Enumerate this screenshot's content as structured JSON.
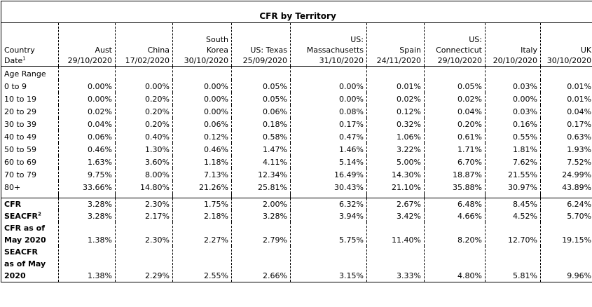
{
  "title": "CFR by Territory",
  "header": {
    "row_label_line1": "Country",
    "row_label_line2": "Date",
    "row_label_sup": "1",
    "columns": [
      {
        "name_lines": [
          "Aust"
        ],
        "date": "29/10/2020"
      },
      {
        "name_lines": [
          "China"
        ],
        "date": "17/02/2020"
      },
      {
        "name_lines": [
          "South",
          "Korea"
        ],
        "date": "30/10/2020"
      },
      {
        "name_lines": [
          "US: Texas"
        ],
        "date": "25/09/2020"
      },
      {
        "name_lines": [
          "US:",
          "Massachusetts"
        ],
        "date": "31/10/2020"
      },
      {
        "name_lines": [
          "Spain"
        ],
        "date": "24/11/2020"
      },
      {
        "name_lines": [
          "US:",
          "Connecticut"
        ],
        "date": "29/10/2020"
      },
      {
        "name_lines": [
          "Italy"
        ],
        "date": "20/10/2020"
      },
      {
        "name_lines": [
          "UK"
        ],
        "date": "30/10/2020"
      }
    ]
  },
  "age_range_label": "Age Range",
  "age_rows": [
    {
      "label": "0 to 9",
      "values": [
        "0.00%",
        "0.00%",
        "0.00%",
        "0.05%",
        "0.00%",
        "0.01%",
        "0.05%",
        "0.03%",
        "0.01%"
      ]
    },
    {
      "label": "10 to 19",
      "values": [
        "0.00%",
        "0.20%",
        "0.00%",
        "0.05%",
        "0.00%",
        "0.02%",
        "0.02%",
        "0.00%",
        "0.01%"
      ]
    },
    {
      "label": "20 to 29",
      "values": [
        "0.02%",
        "0.20%",
        "0.00%",
        "0.06%",
        "0.08%",
        "0.12%",
        "0.04%",
        "0.03%",
        "0.04%"
      ]
    },
    {
      "label": "30 to 39",
      "values": [
        "0.04%",
        "0.20%",
        "0.06%",
        "0.18%",
        "0.17%",
        "0.32%",
        "0.20%",
        "0.16%",
        "0.17%"
      ]
    },
    {
      "label": "40 to 49",
      "values": [
        "0.06%",
        "0.40%",
        "0.12%",
        "0.58%",
        "0.47%",
        "1.06%",
        "0.61%",
        "0.55%",
        "0.63%"
      ]
    },
    {
      "label": "50 to 59",
      "values": [
        "0.46%",
        "1.30%",
        "0.46%",
        "1.47%",
        "1.46%",
        "3.22%",
        "1.71%",
        "1.81%",
        "1.93%"
      ]
    },
    {
      "label": "60 to 69",
      "values": [
        "1.63%",
        "3.60%",
        "1.18%",
        "4.11%",
        "5.14%",
        "5.00%",
        "6.70%",
        "7.62%",
        "7.52%"
      ]
    },
    {
      "label": "70 to 79",
      "values": [
        "9.75%",
        "8.00%",
        "7.13%",
        "12.34%",
        "16.49%",
        "14.30%",
        "18.87%",
        "21.55%",
        "24.99%"
      ]
    },
    {
      "label": "80+",
      "values": [
        "33.66%",
        "14.80%",
        "21.26%",
        "25.81%",
        "30.43%",
        "21.10%",
        "35.88%",
        "30.97%",
        "43.89%"
      ]
    }
  ],
  "summary_rows": [
    {
      "label_lines": [
        "CFR"
      ],
      "sup": "",
      "values": [
        "3.28%",
        "2.30%",
        "1.75%",
        "2.00%",
        "6.32%",
        "2.67%",
        "6.48%",
        "8.45%",
        "6.24%"
      ]
    },
    {
      "label_lines": [
        "SEACFR"
      ],
      "sup": "2",
      "values": [
        "3.28%",
        "2.17%",
        "2.18%",
        "3.28%",
        "3.94%",
        "3.42%",
        "4.66%",
        "4.52%",
        "5.70%"
      ]
    },
    {
      "label_lines": [
        "CFR as of",
        "May 2020"
      ],
      "sup": "",
      "values": [
        "1.38%",
        "2.30%",
        "2.27%",
        "2.79%",
        "5.75%",
        "11.40%",
        "8.20%",
        "12.70%",
        "19.15%"
      ]
    },
    {
      "label_lines": [
        "SEACFR",
        "as of May",
        "2020"
      ],
      "sup": "",
      "values": [
        "1.38%",
        "2.29%",
        "2.55%",
        "2.66%",
        "3.15%",
        "3.33%",
        "4.80%",
        "5.81%",
        "9.96%"
      ]
    }
  ]
}
